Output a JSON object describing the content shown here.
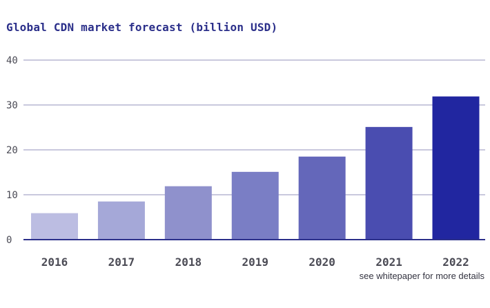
{
  "chart_data": {
    "type": "bar",
    "title": "Global CDN market forecast (billion USD)",
    "categories": [
      "2016",
      "2017",
      "2018",
      "2019",
      "2020",
      "2021",
      "2022"
    ],
    "values": [
      5.9,
      8.5,
      11.9,
      15.1,
      18.5,
      25.1,
      31.9
    ],
    "ylim": [
      0,
      40
    ],
    "yticks": [
      0,
      10,
      20,
      30,
      40
    ],
    "xlabel": "",
    "ylabel": "",
    "grid": true,
    "colors": [
      "#bcbde2",
      "#a5a8d8",
      "#8f91cc",
      "#7a7ec5",
      "#6467ba",
      "#4a4db0",
      "#2126a0"
    ],
    "gridline_color": "#c9c8dd",
    "baseline_color": "#2b2f8a"
  },
  "note": "see whitepaper for more details"
}
